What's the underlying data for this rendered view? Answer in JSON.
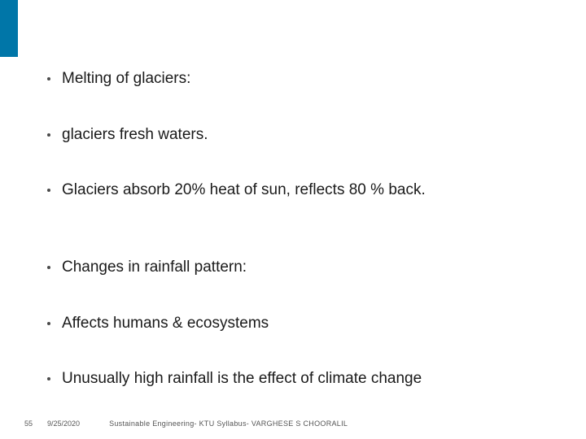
{
  "colors": {
    "accent": "#0076a8",
    "text": "#1a1a1a",
    "bullet": "#4a4a4a",
    "footer": "#555555"
  },
  "bullets": [
    {
      "text": "Melting of glaciers:",
      "extraSpace": false
    },
    {
      "text": "glaciers fresh waters.",
      "extraSpace": false
    },
    {
      "text": "Glaciers absorb 20% heat of sun, reflects 80 % back.",
      "extraSpace": true
    },
    {
      "text": "Changes in rainfall pattern:",
      "extraSpace": false
    },
    {
      "text": "Affects humans & ecosystems",
      "extraSpace": false
    },
    {
      "text": "Unusually high rainfall is the effect of climate change",
      "extraSpace": false
    }
  ],
  "footer": {
    "pageNumber": "55",
    "date": "9/25/2020",
    "text": "Sustainable Engineering- KTU Syllabus- VARGHESE S CHOORALIL"
  }
}
